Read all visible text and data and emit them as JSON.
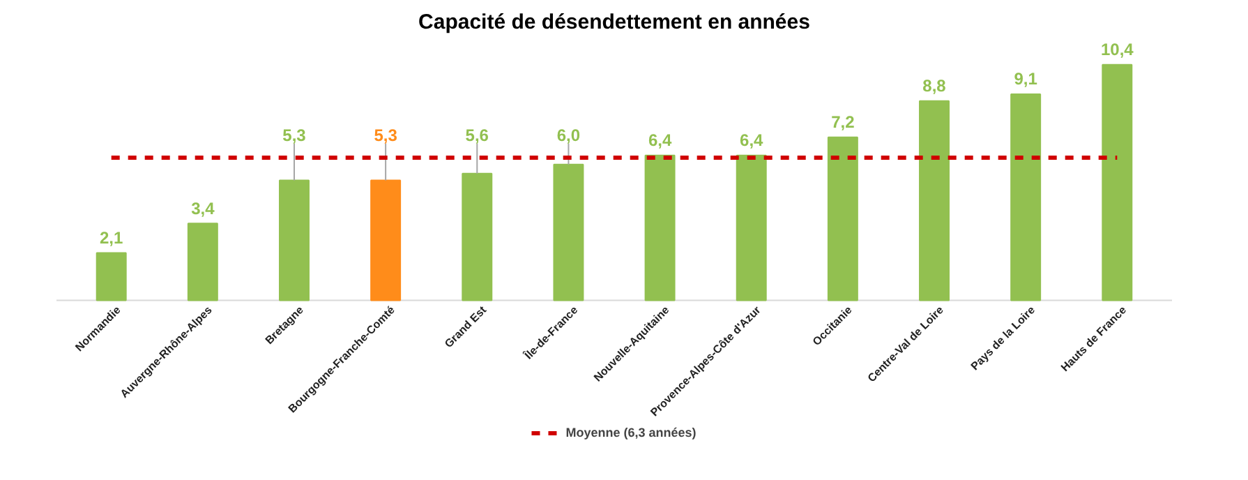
{
  "chart_data": {
    "type": "bar",
    "title": "Capacité de désendettement en années",
    "categories": [
      "Normandie",
      "Auvergne-Rhône-Alpes",
      "Bretagne",
      "Bourgogne-Franche-Comté",
      "Grand Est",
      "Île-de-France",
      "Nouvelle-Aquitaine",
      "Provence-Alpes-Côte d'Azur",
      "Occitanie",
      "Centre-Val de Loire",
      "Pays de la Loire",
      "Hauts de France"
    ],
    "values": [
      2.1,
      3.4,
      5.3,
      5.3,
      5.6,
      6.0,
      6.4,
      6.4,
      7.2,
      8.8,
      9.1,
      10.4
    ],
    "value_labels": [
      "2,1",
      "3,4",
      "5,3",
      "5,3",
      "5,6",
      "6,0",
      "6,4",
      "6,4",
      "7,2",
      "8,8",
      "9,1",
      "10,4"
    ],
    "colors": [
      "#92c050",
      "#92c050",
      "#92c050",
      "#ff8c1a",
      "#92c050",
      "#92c050",
      "#92c050",
      "#92c050",
      "#92c050",
      "#92c050",
      "#92c050",
      "#92c050"
    ],
    "ref_lines": [
      {
        "axis": "y",
        "value": 6.3,
        "label": "Moyenne (6,3 années)",
        "color": "#d00000",
        "line_style": "dashed"
      }
    ],
    "legend": "bottom"
  }
}
